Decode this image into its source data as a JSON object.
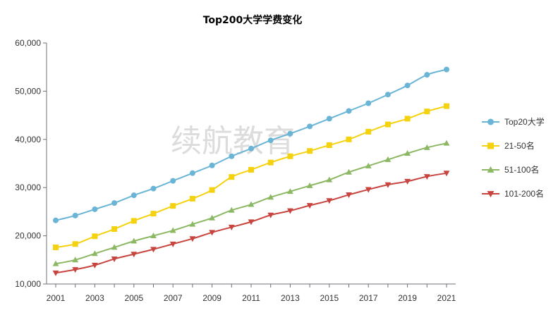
{
  "chart_data": {
    "type": "line",
    "title": "Top200大学学费变化",
    "watermark": "续航教育",
    "xlabel": "",
    "ylabel": "",
    "x": [
      2001,
      2002,
      2003,
      2004,
      2005,
      2006,
      2007,
      2008,
      2009,
      2010,
      2011,
      2012,
      2013,
      2014,
      2015,
      2016,
      2017,
      2018,
      2019,
      2020,
      2021
    ],
    "x_tick_labels": [
      "2001",
      "2003",
      "2005",
      "2007",
      "2009",
      "2011",
      "2013",
      "2015",
      "2017",
      "2019",
      "2021"
    ],
    "x_tick_values": [
      2001,
      2003,
      2005,
      2007,
      2009,
      2011,
      2013,
      2015,
      2017,
      2019,
      2021
    ],
    "ylim": [
      10000,
      60000
    ],
    "y_tick_values": [
      10000,
      20000,
      30000,
      40000,
      50000,
      60000
    ],
    "y_tick_labels": [
      "10,000",
      "20,000",
      "30,000",
      "40,000",
      "50,000",
      "60,000"
    ],
    "grid": false,
    "legend_position": "right",
    "series": [
      {
        "name": "Top20大学",
        "color": "#6ab5d6",
        "marker": "circle",
        "values": [
          23200,
          24200,
          25500,
          26800,
          28400,
          29800,
          31400,
          33000,
          34600,
          36500,
          38100,
          39800,
          41200,
          42700,
          44300,
          45900,
          47500,
          49300,
          51200,
          53400,
          54500
        ]
      },
      {
        "name": "21-50名",
        "color": "#f5d20f",
        "marker": "square",
        "values": [
          17600,
          18300,
          19900,
          21400,
          23100,
          24600,
          26200,
          27700,
          29500,
          32200,
          33700,
          35200,
          36500,
          37600,
          38800,
          40000,
          41600,
          43100,
          44300,
          45800,
          46900
        ]
      },
      {
        "name": "51-100名",
        "color": "#8cb864",
        "marker": "triangle-up",
        "values": [
          14200,
          15000,
          16300,
          17600,
          18900,
          20000,
          21100,
          22400,
          23700,
          25300,
          26500,
          28000,
          29200,
          30400,
          31600,
          33200,
          34500,
          35800,
          37100,
          38300,
          39200
        ]
      },
      {
        "name": "101-200名",
        "color": "#c8443f",
        "marker": "triangle-down",
        "values": [
          12300,
          13000,
          13900,
          15200,
          16200,
          17200,
          18300,
          19400,
          20700,
          21800,
          22900,
          24300,
          25200,
          26300,
          27300,
          28500,
          29600,
          30600,
          31300,
          32300,
          33000
        ]
      }
    ]
  }
}
